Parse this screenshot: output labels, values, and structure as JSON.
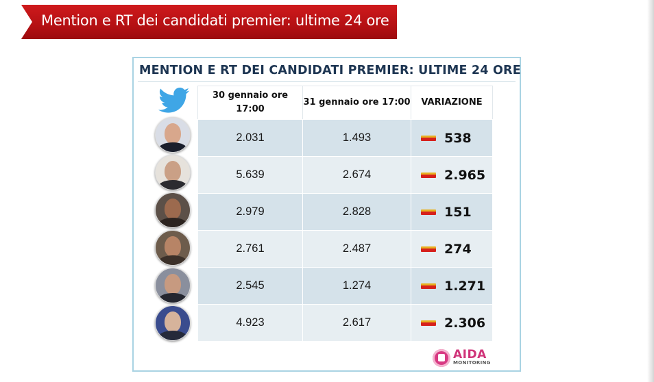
{
  "banner": {
    "title": "Mention e RT dei candidati premier: ultime 24 ore"
  },
  "panel": {
    "title": "MENTION E RT DEI CANDIDATI PREMIER: ULTIME 24 ORE"
  },
  "table": {
    "headers": {
      "col1": "30 gennaio ore 17:00",
      "col2": "31 gennaio ore 17:00",
      "col3": "VARIAZIONE"
    },
    "rows": [
      {
        "v30": "2.031",
        "v31": "1.493",
        "variation": "538"
      },
      {
        "v30": "5.639",
        "v31": "2.674",
        "variation": "2.965"
      },
      {
        "v30": "2.979",
        "v31": "2.828",
        "variation": "151"
      },
      {
        "v30": "2.761",
        "v31": "2.487",
        "variation": "274"
      },
      {
        "v30": "2.545",
        "v31": "1.274",
        "variation": "1.271"
      },
      {
        "v30": "4.923",
        "v31": "2.617",
        "variation": "2.306"
      }
    ]
  },
  "logo": {
    "name": "AIDA",
    "sub": "MONITORING"
  },
  "icons": {
    "header": "twitter-bird-icon",
    "variation": "minus-flag-icon"
  },
  "colors": {
    "banner": "#c0131a",
    "panel_border": "#a9d3e3",
    "title": "#1d3552",
    "logo": "#d0357a"
  }
}
